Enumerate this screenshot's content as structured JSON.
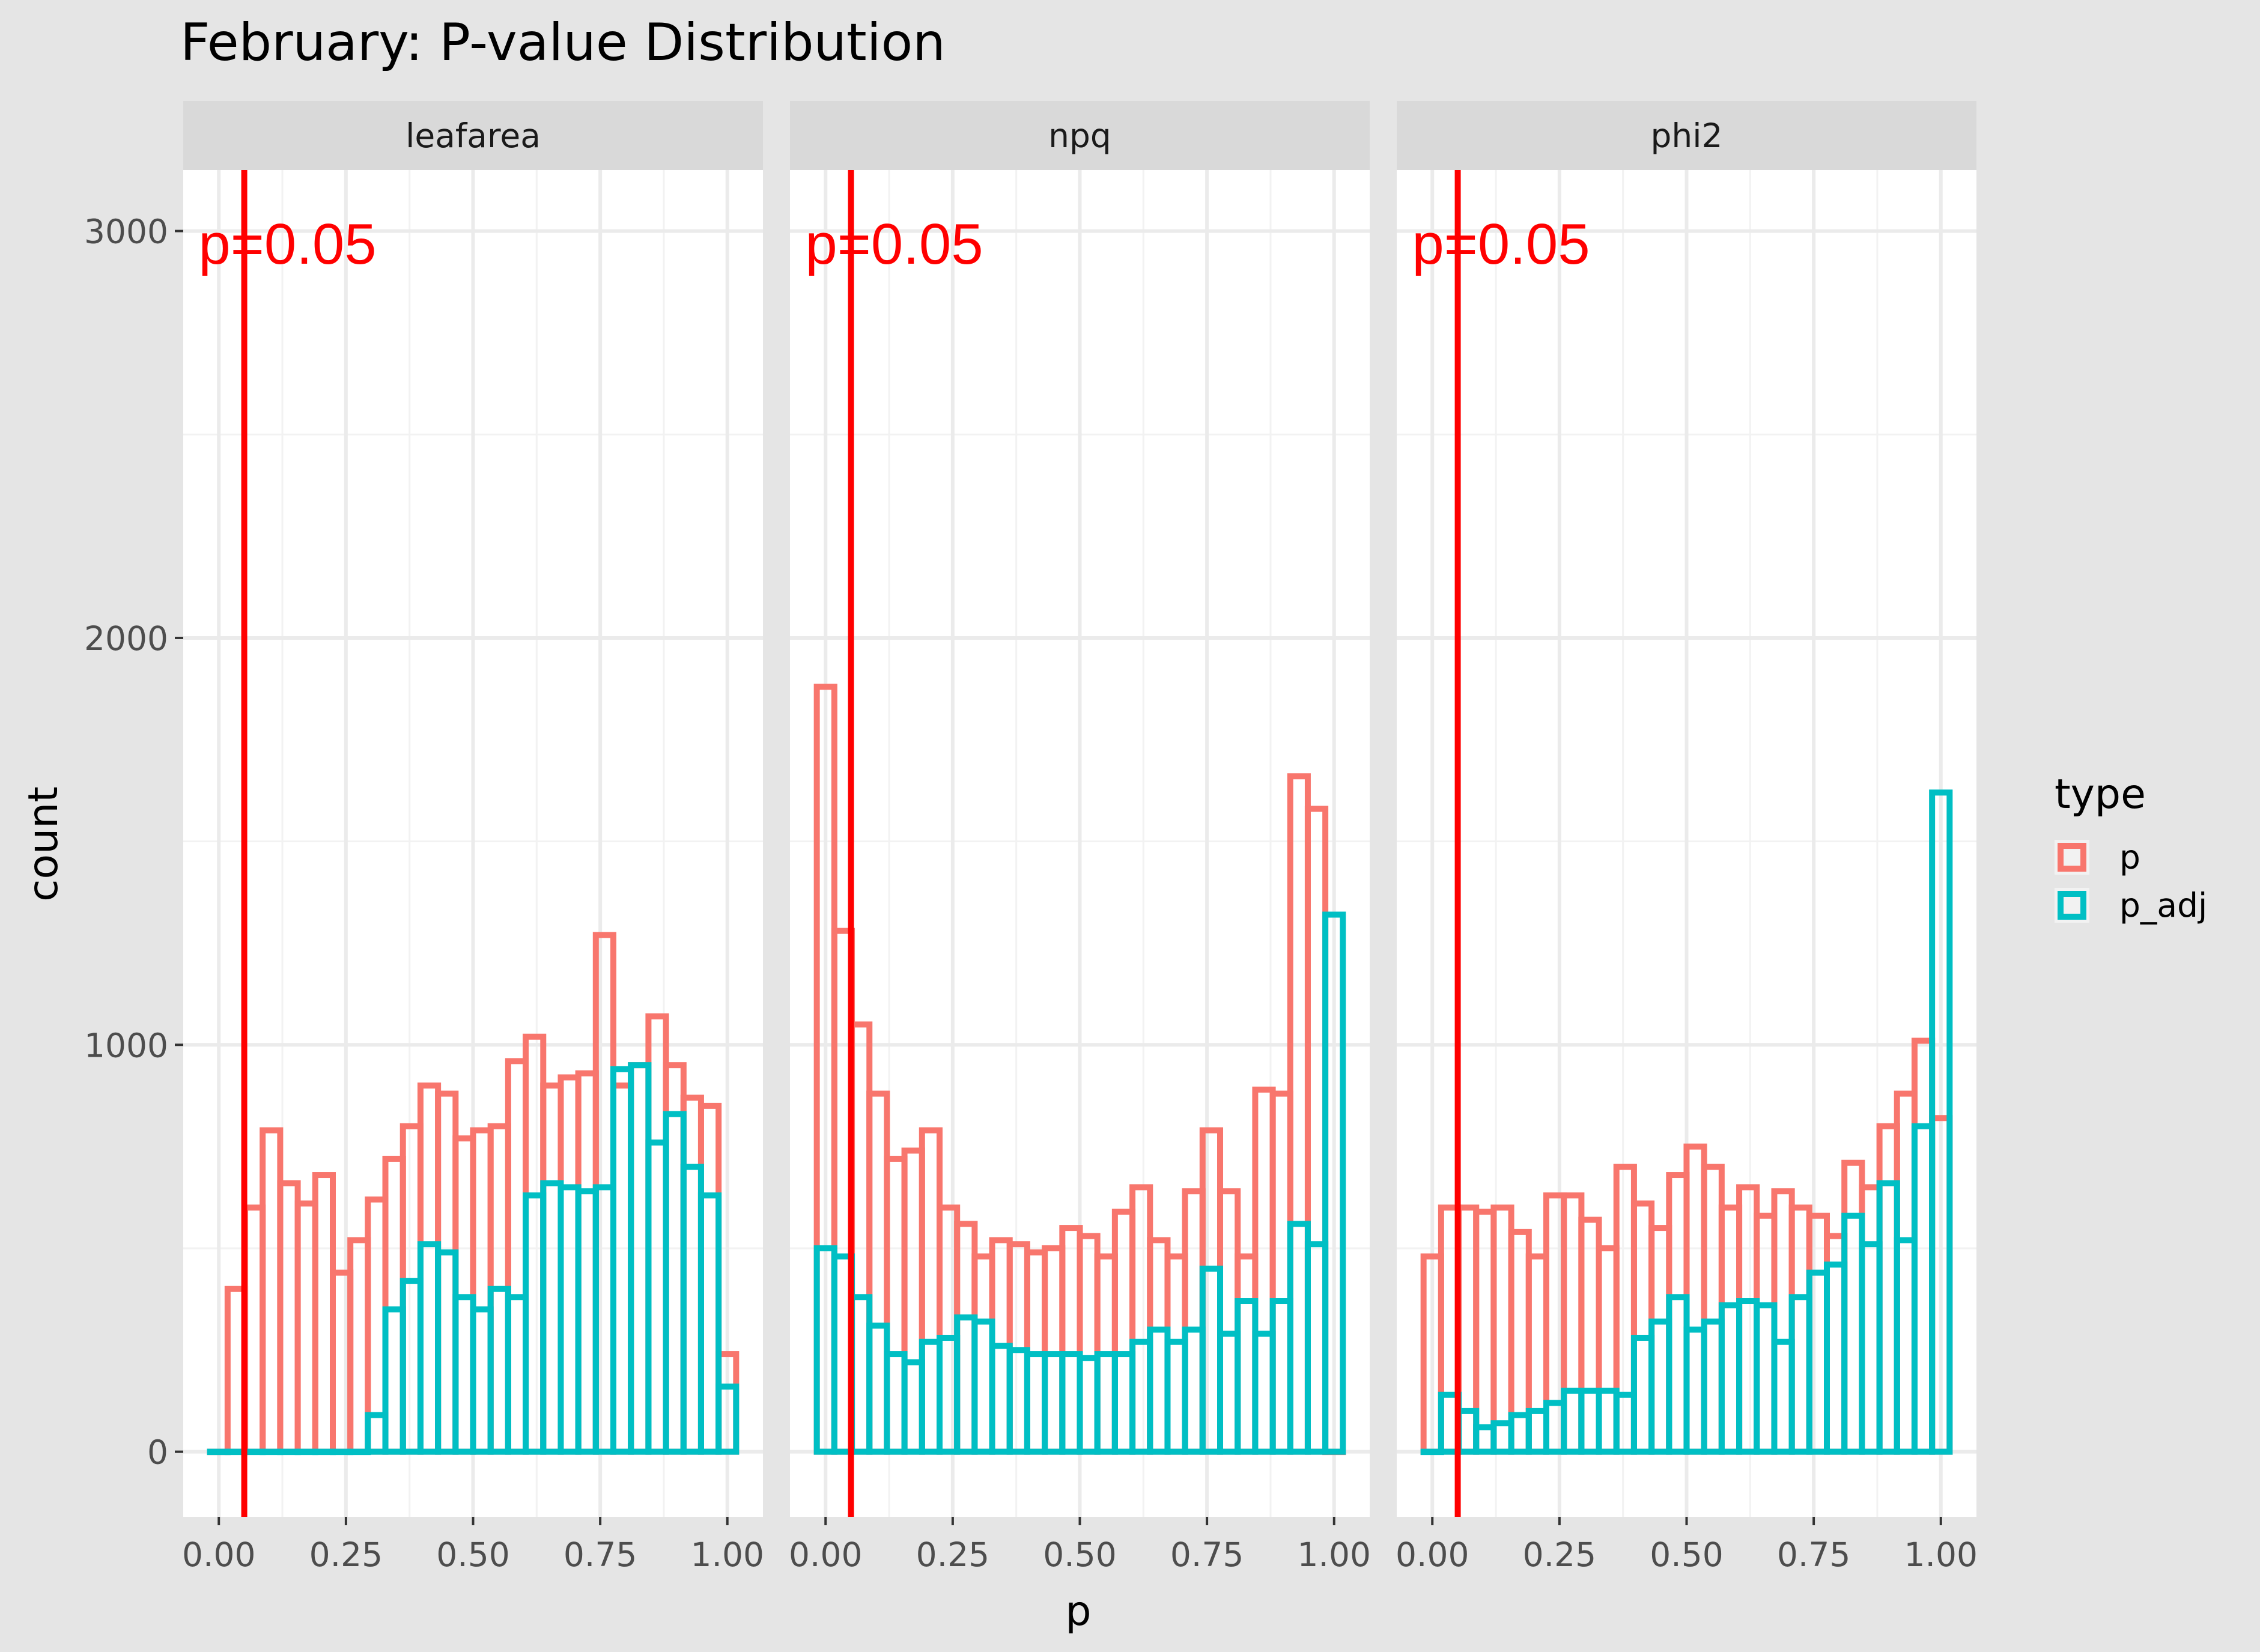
{
  "colors": {
    "p": "#f8766d",
    "p_adj": "#00bfc4",
    "vline": "#ff0000",
    "panel_bg": "#ffffff",
    "strip_bg": "#d9d9d9",
    "grid": "#ebebeb"
  },
  "chart_data": {
    "type": "histogram",
    "title": "February: P-value Distribution",
    "xlabel": "p",
    "ylabel": "count",
    "xlim": [
      -0.07,
      1.07
    ],
    "ylim": [
      -160,
      3150
    ],
    "x_ticks": [
      0,
      0.25,
      0.5,
      0.75,
      1
    ],
    "x_tick_labels": [
      "0.00",
      "0.25",
      "0.50",
      "0.75",
      "1.00"
    ],
    "y_ticks": [
      0,
      1000,
      2000,
      3000
    ],
    "y_tick_labels": [
      "0",
      "1000",
      "2000",
      "3000"
    ],
    "bin_width": 0.0345,
    "bin_centers": [
      0,
      0.0345,
      0.069,
      0.1034,
      0.1379,
      0.1724,
      0.2069,
      0.2414,
      0.2759,
      0.3103,
      0.3448,
      0.3793,
      0.4138,
      0.4483,
      0.4828,
      0.5172,
      0.5517,
      0.5862,
      0.6207,
      0.6552,
      0.6897,
      0.7241,
      0.7586,
      0.7931,
      0.8276,
      0.8621,
      0.8966,
      0.931,
      0.9655,
      1
    ],
    "annotation": {
      "x": 0.05,
      "label": "p=0.05"
    },
    "legend": {
      "title": "type",
      "position": "right",
      "entries": [
        "p",
        "p_adj"
      ]
    },
    "panels": [
      {
        "name": "leafarea",
        "series": [
          {
            "name": "p",
            "values": [
              0,
              400,
              600,
              790,
              660,
              610,
              680,
              440,
              520,
              620,
              720,
              800,
              900,
              880,
              770,
              790,
              800,
              960,
              1020,
              900,
              920,
              930,
              1270,
              900,
              950,
              1070,
              950,
              870,
              850,
              240
            ]
          },
          {
            "name": "p_adj",
            "values": [
              0,
              0,
              0,
              0,
              0,
              0,
              0,
              0,
              0,
              90,
              350,
              420,
              510,
              490,
              380,
              350,
              400,
              380,
              630,
              660,
              650,
              640,
              650,
              940,
              950,
              760,
              830,
              700,
              630,
              160
            ]
          }
        ]
      },
      {
        "name": "npq",
        "series": [
          {
            "name": "p",
            "values": [
              1880,
              1280,
              1050,
              880,
              720,
              740,
              790,
              600,
              560,
              480,
              520,
              510,
              490,
              500,
              550,
              530,
              480,
              590,
              650,
              520,
              480,
              640,
              790,
              640,
              480,
              890,
              880,
              1660,
              1580,
              0
            ]
          },
          {
            "name": "p_adj",
            "values": [
              500,
              480,
              380,
              310,
              240,
              220,
              270,
              280,
              330,
              320,
              260,
              250,
              240,
              240,
              240,
              230,
              240,
              240,
              270,
              300,
              270,
              300,
              450,
              290,
              370,
              290,
              370,
              560,
              510,
              1320
            ]
          }
        ]
      },
      {
        "name": "phi2",
        "series": [
          {
            "name": "p",
            "values": [
              480,
              600,
              600,
              590,
              600,
              540,
              480,
              630,
              630,
              570,
              500,
              700,
              610,
              550,
              680,
              750,
              700,
              600,
              650,
              580,
              640,
              600,
              580,
              530,
              710,
              650,
              800,
              880,
              1010,
              820
            ]
          },
          {
            "name": "p_adj",
            "values": [
              0,
              140,
              100,
              60,
              70,
              90,
              100,
              120,
              150,
              150,
              150,
              140,
              280,
              320,
              380,
              300,
              320,
              360,
              370,
              360,
              270,
              380,
              440,
              460,
              580,
              510,
              660,
              520,
              800,
              1620
            ]
          }
        ]
      }
    ]
  }
}
